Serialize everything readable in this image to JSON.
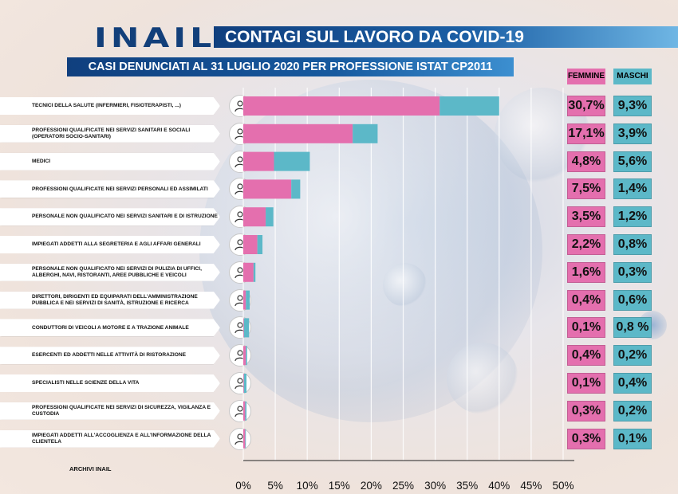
{
  "header": {
    "logo": "INAIL",
    "title": "CONTAGI SUL LAVORO DA COVID-19",
    "subtitle": "CASI DENUNCIATI AL 31 LUGLIO 2020 PER PROFESSIONE ISTAT CP2011"
  },
  "footer": {
    "source": "ARCHIVI INAIL"
  },
  "colors": {
    "femmine": "#e46fae",
    "maschi": "#5cb8c8",
    "brand": "#123f7a"
  },
  "chart_data": {
    "type": "bar",
    "title": "CONTAGI SUL LAVORO DA COVID-19",
    "subtitle": "CASI DENUNCIATI AL 31 LUGLIO 2020 PER PROFESSIONE ISTAT CP2011",
    "orientation": "horizontal",
    "stacked": true,
    "xlim": [
      0,
      50
    ],
    "x_ticks": [
      "0%",
      "5%",
      "10%",
      "15%",
      "20%",
      "25%",
      "30%",
      "35%",
      "40%",
      "45%",
      "50%"
    ],
    "legend": [
      "FEMMINE",
      "MASCHI"
    ],
    "categories": [
      {
        "label": "TECNICI DELLA SALUTE (INFERMIERI, FISIOTERAPISTI, ...)",
        "icon": "nurse-icon"
      },
      {
        "label": "PROFESSIONI QUALIFICATE NEI SERVIZI SANITARI E SOCIALI (OPERATORI SOCIO-SANITARI)",
        "icon": "care-worker-icon"
      },
      {
        "label": "MEDICI",
        "icon": "doctor-icon"
      },
      {
        "label": "PROFESSIONI QUALIFICATE NEI SERVIZI PERSONALI ED ASSIMILATI",
        "icon": "personal-service-icon"
      },
      {
        "label": "PERSONALE NON QUALIFICATO NEI SERVIZI  SANITARI E DI ISTRUZIONE",
        "icon": "unskilled-health-icon"
      },
      {
        "label": "IMPIEGATI ADDETTI ALLA SEGRETERIA E AGLI AFFARI GENERALI",
        "icon": "secretary-icon"
      },
      {
        "label": "PERSONALE NON QUALIFICATO NEI SERVIZI DI PULIZIA DI UFFICI, ALBERGHI, NAVI, RISTORANTI, AREE PUBBLICHE E VEICOLI",
        "icon": "cleaning-gloves-icon"
      },
      {
        "label": "DIRETTORI, DIRIGENTI ED EQUIPARATI DELL'AMMINISTRAZIONE PUBBLICA E NEI SERVIZI DI SANITÀ, ISTRUZIONE E RICERCA",
        "icon": "manager-icon"
      },
      {
        "label": "CONDUTTORI DI VEICOLI A MOTORE E A TRAZIONE ANIMALE",
        "icon": "van-icon"
      },
      {
        "label": "ESERCENTI ED ADDETTI NELLE ATTIVITÀ DI RISTORAZIONE",
        "icon": "cloche-icon"
      },
      {
        "label": "SPECIALISTI NELLE SCIENZE DELLA VITA",
        "icon": "scientist-icon"
      },
      {
        "label": "PROFESSIONI QUALIFICATE NEI SERVIZI DI SICUREZZA, VIGILANZA E CUSTODIA",
        "icon": "security-guard-icon"
      },
      {
        "label": "IMPIEGATI ADDETTI ALL'ACCOGLIENZA E ALL'INFORMAZIONE DELLA CLIENTELA",
        "icon": "receptionist-icon"
      }
    ],
    "series": [
      {
        "name": "FEMMINE",
        "color": "#e46fae",
        "values": [
          30.7,
          17.1,
          4.8,
          7.5,
          3.5,
          2.2,
          1.6,
          0.4,
          0.1,
          0.4,
          0.1,
          0.3,
          0.3
        ],
        "labels": [
          "30,7%",
          "17,1%",
          "4,8%",
          "7,5%",
          "3,5%",
          "2,2%",
          "1,6%",
          "0,4%",
          "0,1%",
          "0,4%",
          "0,1%",
          "0,3%",
          "0,3%"
        ]
      },
      {
        "name": "MASCHI",
        "color": "#5cb8c8",
        "values": [
          9.3,
          3.9,
          5.6,
          1.4,
          1.2,
          0.8,
          0.3,
          0.6,
          0.8,
          0.2,
          0.4,
          0.2,
          0.1
        ],
        "labels": [
          "9,3%",
          "3,9%",
          "5,6%",
          "1,4%",
          "1,2%",
          "0,8%",
          "0,3%",
          "0,6%",
          "0,8 %",
          "0,2%",
          "0,4%",
          "0,2%",
          "0,1%"
        ]
      }
    ]
  }
}
